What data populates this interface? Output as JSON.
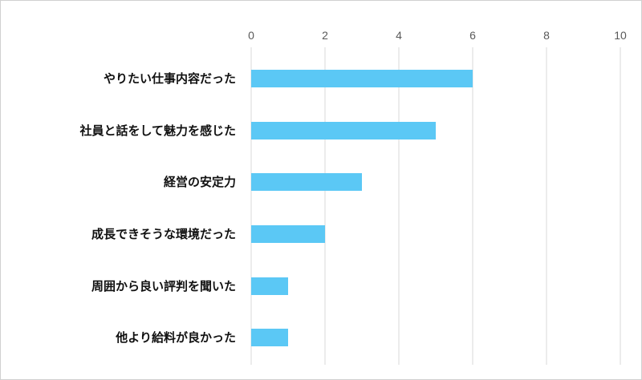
{
  "chart_data": {
    "type": "bar",
    "orientation": "horizontal",
    "categories": [
      "やりたい仕事内容だった",
      "社員と話をして魅力を感じた",
      "経営の安定力",
      "成長できそうな環境だった",
      "周囲から良い評判を聞いた",
      "他より給料が良かった"
    ],
    "values": [
      6,
      5,
      3,
      2,
      1,
      1
    ],
    "xlim": [
      0,
      10
    ],
    "xticks": [
      "0",
      "2",
      "4",
      "6",
      "8",
      "10"
    ],
    "x_axis_position": "top",
    "grid": true,
    "legend": "none",
    "bar_color": "#5bc8f5",
    "grid_color": "#d9d9d9"
  }
}
